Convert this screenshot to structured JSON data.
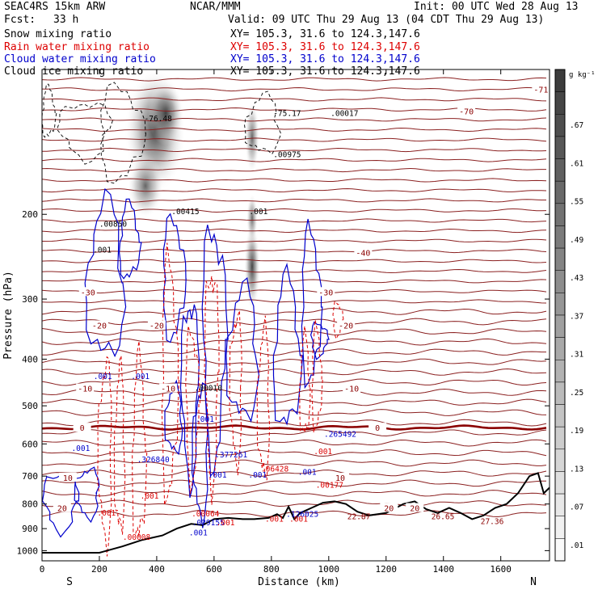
{
  "header": {
    "model": "SEAC4RS 15km ARW",
    "org": "NCAR/MMM",
    "init": "Init: 00 UTC Wed 28 Aug 13",
    "fcst_label": "Fcst:",
    "fcst_value": "33 h",
    "valid": "Valid: 09 UTC Thu 29 Aug 13 (04 CDT Thu 29 Aug 13)",
    "fields": [
      {
        "name": "Snow mixing ratio",
        "xy": "XY= 105.3, 31.6 to 124.3,147.6",
        "color": "#000000"
      },
      {
        "name": "Rain water mixing ratio",
        "xy": "XY= 105.3, 31.6 to 124.3,147.6",
        "color": "#dd0000"
      },
      {
        "name": "Cloud water mixing ratio",
        "xy": "XY= 105.3, 31.6 to 124.3,147.6",
        "color": "#0000cc"
      },
      {
        "name": "Cloud ice mixing ratio",
        "xy": "XY= 105.3, 31.6 to 124.3,147.6",
        "color": "#000000"
      }
    ]
  },
  "chart_data": {
    "type": "cross-section",
    "xlabel": "Distance (km)",
    "ylabel": "Pressure (hPa)",
    "xlim": [
      0,
      1770
    ],
    "ylim": [
      1050,
      100
    ],
    "y_scale": "log",
    "x_ticks": [
      0,
      200,
      400,
      600,
      800,
      1000,
      1200,
      1400,
      1600
    ],
    "x_tick_labels": [
      "0",
      "200",
      "400",
      "600",
      "800",
      "1000",
      "1200",
      "1400",
      "1600"
    ],
    "y_ticks": [
      200,
      300,
      400,
      500,
      600,
      700,
      800,
      900,
      1000
    ],
    "y_tick_labels": [
      "200",
      "300",
      "400",
      "500",
      "600",
      "700",
      "800",
      "900",
      "1000"
    ],
    "end_left": "S",
    "end_right": "N",
    "colorbar": {
      "unit": "g kg⁻¹",
      "labels": [
        ".67",
        ".61",
        ".55",
        ".49",
        ".43",
        ".37",
        ".31",
        ".25",
        ".19",
        ".13",
        ".07",
        ".01"
      ]
    },
    "temperature_isotherms": [
      {
        "label": "-71",
        "p": 110
      },
      {
        "label": "-70",
        "p": 122
      },
      {
        "label": "-40",
        "p": 240
      },
      {
        "label": "-30",
        "p": 290
      },
      {
        "label": "-20",
        "p": 340
      },
      {
        "label": "-10",
        "p": 460
      },
      {
        "label": "0",
        "p": 555
      },
      {
        "label": "10",
        "p": 705
      },
      {
        "label": "20",
        "p": 815
      }
    ],
    "annotations": [
      {
        "text": "-76.48",
        "x": 405,
        "p": 128,
        "color": "#000000"
      },
      {
        "text": "-75.17",
        "x": 855,
        "p": 125,
        "color": "#000000"
      },
      {
        "text": ".00017",
        "x": 1055,
        "p": 125,
        "color": "#000000"
      },
      {
        "text": ".00975",
        "x": 855,
        "p": 152,
        "color": "#000000"
      },
      {
        "text": ".00850",
        "x": 248,
        "p": 212,
        "color": "#000000"
      },
      {
        "text": ".00415",
        "x": 500,
        "p": 200,
        "color": "#000000"
      },
      {
        "text": ".001",
        "x": 755,
        "p": 200,
        "color": "#000000"
      },
      {
        "text": ".001",
        "x": 210,
        "p": 240,
        "color": "#000000"
      },
      {
        "text": ".00010",
        "x": 580,
        "p": 465,
        "color": "#000000"
      },
      {
        "text": ".001",
        "x": 212,
        "p": 440,
        "color": "#0000cc"
      },
      {
        "text": ".001",
        "x": 343,
        "p": 440,
        "color": "#0000cc"
      },
      {
        "text": ".001",
        "x": 568,
        "p": 540,
        "color": "#0000cc"
      },
      {
        "text": ".001",
        "x": 135,
        "p": 620,
        "color": "#0000cc"
      },
      {
        "text": ".265492",
        "x": 1040,
        "p": 580,
        "color": "#0000cc"
      },
      {
        "text": ".326840",
        "x": 388,
        "p": 655,
        "color": "#0000cc"
      },
      {
        "text": ".377261",
        "x": 660,
        "p": 640,
        "color": "#0000cc"
      },
      {
        "text": ".001",
        "x": 612,
        "p": 705,
        "color": "#0000cc"
      },
      {
        "text": ".001",
        "x": 752,
        "p": 705,
        "color": "#0000cc"
      },
      {
        "text": ".001",
        "x": 925,
        "p": 695,
        "color": "#0000cc"
      },
      {
        "text": ".126025",
        "x": 908,
        "p": 850,
        "color": "#0000cc"
      },
      {
        "text": ".029155",
        "x": 580,
        "p": 885,
        "color": "#0000cc"
      },
      {
        "text": ".001",
        "x": 545,
        "p": 930,
        "color": "#0000cc"
      },
      {
        "text": ".001",
        "x": 980,
        "p": 630,
        "color": "#dd0000"
      },
      {
        "text": ".06428",
        "x": 812,
        "p": 685,
        "color": "#dd0000"
      },
      {
        "text": ".00177",
        "x": 1003,
        "p": 740,
        "color": "#dd0000"
      },
      {
        "text": ".001",
        "x": 375,
        "p": 780,
        "color": "#dd0000"
      },
      {
        "text": ".001",
        "x": 225,
        "p": 845,
        "color": "#dd0000"
      },
      {
        "text": ".00064",
        "x": 570,
        "p": 848,
        "color": "#dd0000"
      },
      {
        "text": ".001",
        "x": 640,
        "p": 885,
        "color": "#dd0000"
      },
      {
        "text": ".001",
        "x": 810,
        "p": 870,
        "color": "#dd0000"
      },
      {
        "text": ".001",
        "x": 895,
        "p": 870,
        "color": "#dd0000"
      },
      {
        "text": ".00008",
        "x": 330,
        "p": 950,
        "color": "#dd0000"
      },
      {
        "text": "22.87",
        "x": 1105,
        "p": 860,
        "color": "#8b0000"
      },
      {
        "text": "26.65",
        "x": 1398,
        "p": 860,
        "color": "#8b0000"
      },
      {
        "text": "27.36",
        "x": 1570,
        "p": 880,
        "color": "#8b0000"
      }
    ]
  }
}
